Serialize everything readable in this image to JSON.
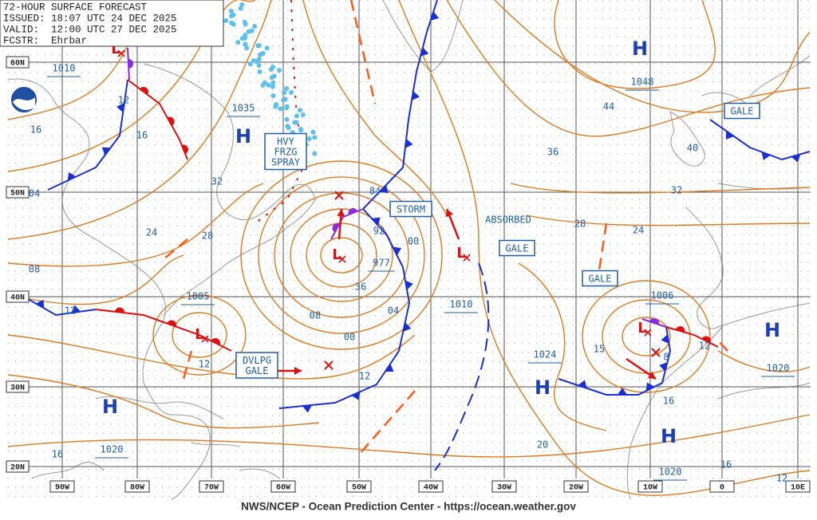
{
  "header": {
    "title": "72-HOUR SURFACE FORECAST",
    "issued": "ISSUED: 18:07 UTC 24 DEC 2025",
    "valid": "VALID:  12:00 UTC 27 DEC 2025",
    "forecaster": "FCSTR:  Ehrbar"
  },
  "latitude_labels": [
    "60N",
    "50N",
    "40N",
    "30N",
    "20N"
  ],
  "longitude_labels": [
    "90W",
    "80W",
    "70W",
    "60W",
    "50W",
    "40W",
    "30W",
    "20W",
    "10W",
    "0",
    "10E"
  ],
  "pressure_centers": [
    {
      "symbol": "H",
      "pressure": "1035"
    },
    {
      "symbol": "H",
      "pressure": "1048"
    },
    {
      "symbol": "H",
      "pressure": "1024"
    },
    {
      "symbol": "H",
      "pressure": "1020"
    },
    {
      "symbol": "H",
      "pressure": "1020"
    },
    {
      "symbol": "H",
      "pressure": "1020"
    },
    {
      "symbol": "L",
      "pressure": "977"
    },
    {
      "symbol": "L",
      "pressure": "1010"
    },
    {
      "symbol": "L",
      "pressure": "1005"
    },
    {
      "symbol": "L",
      "pressure": "1006"
    },
    {
      "symbol": "L",
      "pressure": "1010"
    }
  ],
  "isobar_labels": [
    "12",
    "16",
    "16",
    "04",
    "24",
    "28",
    "32",
    "08",
    "12",
    "12",
    "84",
    "92",
    "00",
    "36",
    "04",
    "08",
    "00",
    "12",
    "44",
    "40",
    "36",
    "32",
    "28",
    "24",
    "20",
    "16",
    "15",
    "8",
    "12",
    "16",
    "16",
    "12"
  ],
  "warnings": [
    {
      "lines": [
        "HVY",
        "FRZG",
        "SPRAY"
      ]
    },
    {
      "lines": [
        "STORM"
      ]
    },
    {
      "lines": [
        "GALE"
      ]
    },
    {
      "lines": [
        "GALE"
      ]
    },
    {
      "lines": [
        "GALE"
      ]
    },
    {
      "lines": [
        "DVLPG",
        "GALE"
      ]
    }
  ],
  "annotations": [
    "ABSORBED"
  ],
  "footer": "NWS/NCEP - Ocean Prediction Center - https://ocean.weather.gov"
}
